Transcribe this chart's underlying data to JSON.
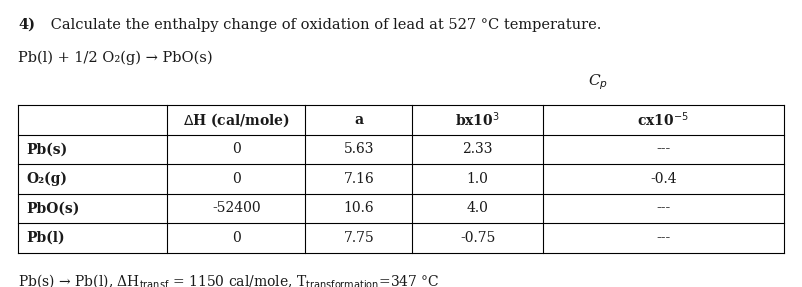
{
  "title_bold": "4)",
  "title_rest": " Calculate the enthalpy change of oxidation of lead at 527 °C temperature.",
  "title_line2": "Pb(l) + 1/2 O₂(g) → PbO(s)",
  "col_headers": [
    "ΔH (cal/mole)",
    "a",
    "bx10³",
    "cx10⁻⁵"
  ],
  "row_labels": [
    "Pb(s)",
    "O₂(g)",
    "PbO(s)",
    "Pb(l)"
  ],
  "table_data": [
    [
      "0",
      "5.63",
      "2.33",
      "---"
    ],
    [
      "0",
      "7.16",
      "1.0",
      "-0.4"
    ],
    [
      "-52400",
      "10.6",
      "4.0",
      "---"
    ],
    [
      "0",
      "7.75",
      "-0.75",
      "---"
    ]
  ],
  "bg_color": "#ffffff",
  "text_color": "#1a1a1a",
  "font_size_title": 10.5,
  "font_size_table": 10,
  "font_size_footer": 10
}
